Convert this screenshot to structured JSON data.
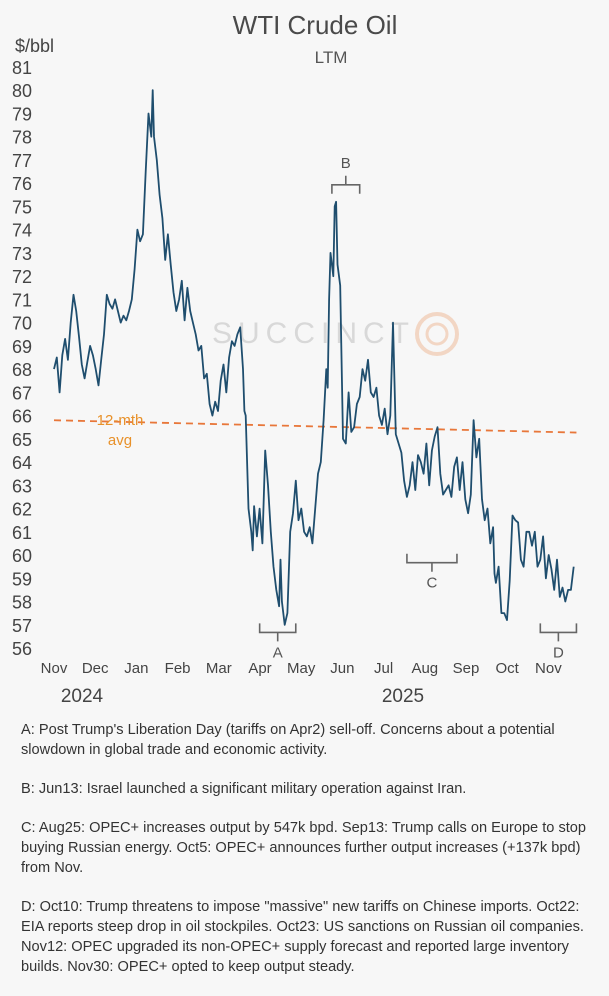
{
  "chart_data": {
    "type": "line",
    "title": "WTI Crude Oil",
    "subtitle": "LTM",
    "ylabel": "$/bbl",
    "ylim": [
      56,
      81
    ],
    "yticks": [
      81,
      80,
      79,
      78,
      77,
      76,
      75,
      74,
      73,
      72,
      71,
      70,
      69,
      68,
      67,
      66,
      65,
      64,
      63,
      62,
      61,
      60,
      59,
      58,
      57,
      56
    ],
    "x_labels": [
      "Nov",
      "Dec",
      "Jan",
      "Feb",
      "Mar",
      "Apr",
      "May",
      "Jun",
      "Jul",
      "Aug",
      "Sep",
      "Oct",
      "Nov"
    ],
    "years": [
      "2024",
      "2025"
    ],
    "series": [
      {
        "name": "WTI",
        "color": "#1f4e6e",
        "points": [
          [
            0.0,
            68.0
          ],
          [
            0.1,
            68.5
          ],
          [
            0.2,
            67.0
          ],
          [
            0.3,
            68.6
          ],
          [
            0.4,
            69.3
          ],
          [
            0.5,
            68.4
          ],
          [
            0.6,
            70.0
          ],
          [
            0.7,
            71.2
          ],
          [
            0.8,
            70.5
          ],
          [
            0.9,
            69.4
          ],
          [
            1.0,
            68.2
          ],
          [
            1.1,
            67.6
          ],
          [
            1.2,
            68.3
          ],
          [
            1.3,
            69.0
          ],
          [
            1.4,
            68.6
          ],
          [
            1.5,
            68.0
          ],
          [
            1.6,
            67.3
          ],
          [
            1.7,
            68.4
          ],
          [
            1.8,
            69.5
          ],
          [
            1.9,
            71.2
          ],
          [
            2.0,
            70.8
          ],
          [
            2.1,
            70.6
          ],
          [
            2.2,
            71.0
          ],
          [
            2.3,
            70.5
          ],
          [
            2.4,
            70.0
          ],
          [
            2.5,
            70.3
          ],
          [
            2.6,
            70.1
          ],
          [
            2.7,
            70.5
          ],
          [
            2.8,
            71.0
          ],
          [
            2.9,
            72.3
          ],
          [
            3.0,
            74.0
          ],
          [
            3.1,
            73.5
          ],
          [
            3.2,
            73.8
          ],
          [
            3.3,
            76.5
          ],
          [
            3.4,
            79.0
          ],
          [
            3.5,
            78.0
          ],
          [
            3.55,
            80.0
          ],
          [
            3.6,
            78.0
          ],
          [
            3.7,
            77.0
          ],
          [
            3.8,
            75.5
          ],
          [
            3.9,
            74.5
          ],
          [
            4.0,
            72.7
          ],
          [
            4.1,
            73.8
          ],
          [
            4.2,
            72.5
          ],
          [
            4.3,
            71.3
          ],
          [
            4.4,
            70.5
          ],
          [
            4.5,
            71.0
          ],
          [
            4.6,
            71.8
          ],
          [
            4.7,
            70.1
          ],
          [
            4.8,
            71.5
          ],
          [
            4.9,
            70.5
          ],
          [
            5.0,
            70.0
          ],
          [
            5.1,
            69.5
          ],
          [
            5.2,
            68.8
          ],
          [
            5.3,
            69.0
          ],
          [
            5.4,
            67.6
          ],
          [
            5.5,
            67.8
          ],
          [
            5.6,
            66.5
          ],
          [
            5.7,
            66.0
          ],
          [
            5.8,
            66.6
          ],
          [
            5.9,
            66.2
          ],
          [
            6.0,
            67.5
          ],
          [
            6.1,
            68.2
          ],
          [
            6.2,
            67.0
          ],
          [
            6.3,
            68.5
          ],
          [
            6.4,
            69.2
          ],
          [
            6.5,
            69.0
          ],
          [
            6.6,
            69.5
          ],
          [
            6.7,
            69.8
          ],
          [
            6.8,
            68.0
          ],
          [
            6.85,
            66.2
          ],
          [
            6.9,
            66.0
          ],
          [
            7.0,
            62.0
          ],
          [
            7.1,
            61.0
          ],
          [
            7.15,
            60.2
          ],
          [
            7.2,
            62.1
          ],
          [
            7.3,
            60.8
          ],
          [
            7.4,
            62.0
          ],
          [
            7.5,
            60.5
          ],
          [
            7.6,
            64.5
          ],
          [
            7.7,
            63.0
          ],
          [
            7.8,
            61.0
          ],
          [
            7.9,
            59.5
          ],
          [
            8.0,
            58.5
          ],
          [
            8.1,
            57.8
          ],
          [
            8.15,
            59.8
          ],
          [
            8.2,
            58.0
          ],
          [
            8.3,
            57.0
          ],
          [
            8.4,
            57.5
          ],
          [
            8.5,
            61.0
          ],
          [
            8.6,
            61.8
          ],
          [
            8.7,
            63.2
          ],
          [
            8.8,
            61.5
          ],
          [
            8.9,
            62.0
          ],
          [
            9.0,
            61.0
          ],
          [
            9.1,
            60.8
          ],
          [
            9.2,
            61.2
          ],
          [
            9.3,
            60.5
          ],
          [
            9.4,
            62.0
          ],
          [
            9.5,
            63.5
          ],
          [
            9.6,
            64.0
          ],
          [
            9.7,
            65.8
          ],
          [
            9.8,
            68.0
          ],
          [
            9.85,
            67.2
          ],
          [
            9.9,
            71.0
          ],
          [
            9.95,
            73.0
          ],
          [
            10.0,
            72.5
          ],
          [
            10.05,
            72.0
          ],
          [
            10.1,
            75.0
          ],
          [
            10.15,
            75.2
          ],
          [
            10.2,
            72.5
          ],
          [
            10.3,
            71.6
          ],
          [
            10.4,
            65.0
          ],
          [
            10.5,
            64.8
          ],
          [
            10.6,
            67.0
          ],
          [
            10.7,
            65.3
          ],
          [
            10.8,
            65.5
          ],
          [
            10.9,
            66.5
          ],
          [
            11.0,
            66.8
          ],
          [
            11.1,
            68.0
          ],
          [
            11.2,
            67.5
          ],
          [
            11.3,
            68.4
          ],
          [
            11.4,
            67.0
          ],
          [
            11.5,
            66.8
          ],
          [
            11.6,
            67.2
          ],
          [
            11.7,
            66.0
          ],
          [
            11.8,
            65.6
          ],
          [
            11.9,
            66.3
          ],
          [
            12.0,
            65.2
          ],
          [
            12.1,
            66.0
          ],
          [
            12.2,
            70.0
          ],
          [
            12.3,
            65.2
          ],
          [
            12.4,
            64.8
          ],
          [
            12.5,
            64.4
          ],
          [
            12.6,
            63.2
          ],
          [
            12.7,
            62.5
          ],
          [
            12.8,
            63.0
          ],
          [
            12.9,
            64.0
          ],
          [
            13.0,
            62.8
          ],
          [
            13.1,
            64.3
          ],
          [
            13.2,
            64.0
          ],
          [
            13.3,
            63.5
          ],
          [
            13.4,
            64.8
          ],
          [
            13.5,
            63.0
          ],
          [
            13.6,
            64.5
          ],
          [
            13.7,
            65.1
          ],
          [
            13.8,
            65.5
          ],
          [
            13.9,
            63.5
          ],
          [
            14.0,
            62.6
          ],
          [
            14.1,
            62.8
          ],
          [
            14.2,
            63.0
          ],
          [
            14.3,
            62.5
          ],
          [
            14.4,
            63.8
          ],
          [
            14.5,
            64.2
          ],
          [
            14.6,
            62.8
          ],
          [
            14.7,
            64.0
          ],
          [
            14.8,
            62.4
          ],
          [
            14.9,
            61.8
          ],
          [
            15.0,
            62.6
          ],
          [
            15.1,
            65.8
          ],
          [
            15.2,
            64.2
          ],
          [
            15.3,
            65.0
          ],
          [
            15.4,
            62.4
          ],
          [
            15.5,
            61.5
          ],
          [
            15.6,
            62.0
          ],
          [
            15.7,
            60.5
          ],
          [
            15.8,
            61.2
          ],
          [
            15.85,
            59.2
          ],
          [
            15.9,
            58.8
          ],
          [
            16.0,
            59.5
          ],
          [
            16.1,
            57.5
          ],
          [
            16.2,
            57.5
          ],
          [
            16.3,
            57.2
          ],
          [
            16.4,
            58.9
          ],
          [
            16.5,
            61.7
          ],
          [
            16.6,
            61.5
          ],
          [
            16.7,
            61.4
          ],
          [
            16.8,
            59.8
          ],
          [
            16.9,
            59.5
          ],
          [
            17.0,
            61.0
          ],
          [
            17.1,
            61.0
          ],
          [
            17.2,
            60.4
          ],
          [
            17.3,
            61.0
          ],
          [
            17.4,
            59.5
          ],
          [
            17.5,
            59.8
          ],
          [
            17.6,
            60.8
          ],
          [
            17.7,
            59.0
          ],
          [
            17.8,
            60.0
          ],
          [
            17.9,
            59.4
          ],
          [
            18.0,
            58.5
          ],
          [
            18.1,
            59.8
          ],
          [
            18.2,
            58.2
          ],
          [
            18.3,
            58.6
          ],
          [
            18.4,
            58.0
          ],
          [
            18.5,
            58.5
          ],
          [
            18.6,
            58.5
          ],
          [
            18.7,
            59.5
          ]
        ]
      }
    ],
    "reference_lines": [
      {
        "name": "12-mth avg",
        "value": 65.3,
        "color": "#e8773a",
        "style": "dashed"
      }
    ],
    "annotations": [
      {
        "label": "A",
        "type": "bracket-below",
        "x_range": [
          7.4,
          8.7
        ],
        "at": 57.1
      },
      {
        "label": "B",
        "type": "bracket-above",
        "x_range": [
          10.0,
          11.0
        ],
        "at": 75.2
      },
      {
        "label": "C",
        "type": "bracket-below",
        "x_range": [
          12.7,
          14.5
        ],
        "at": 60.1
      },
      {
        "label": "D",
        "type": "bracket-below",
        "x_range": [
          17.5,
          18.8
        ],
        "at": 57.1
      }
    ],
    "avg_label": [
      "12-mth",
      "avg"
    ],
    "watermark": "SUCCINCT"
  },
  "notes": [
    "A: Post Trump's Liberation Day (tariffs on Apr2) sell-off. Concerns about a potential slowdown in global trade and economic activity.",
    "B: Jun13: Israel launched a significant military operation against Iran.",
    "C: Aug25: OPEC+ increases output by 547k bpd. Sep13: Trump calls on Europe to stop buying Russian energy. Oct5: OPEC+ announces further output increases (+137k bpd) from Nov.",
    "D: Oct10: Trump threatens to impose \"massive\" new tariffs on Chinese imports. Oct22: EIA reports steep drop in oil stockpiles. Oct23: US sanctions on Russian oil companies. Nov12: OPEC upgraded its non-OPEC+ supply forecast and reported large inventory builds. Nov30: OPEC+ opted to keep output steady."
  ]
}
